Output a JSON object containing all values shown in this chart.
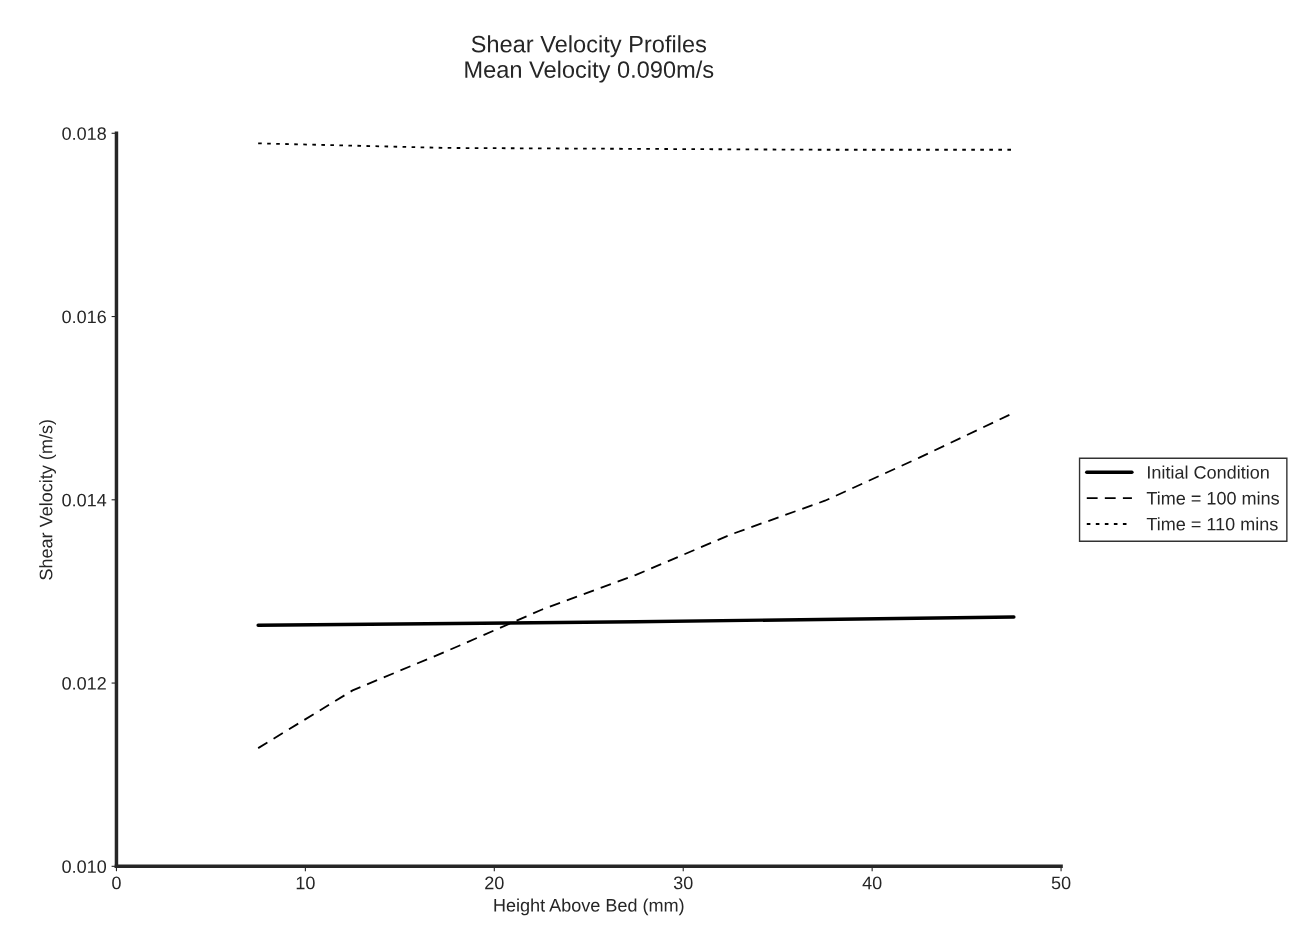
{
  "chart_data": {
    "type": "line",
    "title": "Shear Velocity Profiles\nMean Velocity 0.090m/s",
    "xlabel": "Height Above Bed (mm)",
    "ylabel": "Shear Velocity (m/s)",
    "xlim": [
      0,
      50
    ],
    "xticks": [
      0,
      10,
      20,
      30,
      40,
      50
    ],
    "ylim": [
      0.01,
      0.018
    ],
    "yticks": [
      {
        "value": 0.01,
        "label": "0.010"
      },
      {
        "value": 0.012,
        "label": "0.012"
      },
      {
        "value": 0.014,
        "label": "0.014"
      },
      {
        "value": 0.016,
        "label": "0.016"
      },
      {
        "value": 0.018,
        "label": "0.018"
      }
    ],
    "grid": false,
    "legend": "right",
    "marker": "none",
    "series": [
      {
        "name": "Initial Condition",
        "color": "#000000",
        "line_style": "solid",
        "x": [
          7.5,
          27.5,
          47.5
        ],
        "values": [
          0.01263,
          0.01267,
          0.01272
        ]
      },
      {
        "name": "Time = 100 mins",
        "color": "#000000",
        "line_style": "dashed",
        "x": [
          7.5,
          12.5,
          17.5,
          22.5,
          27.5,
          32.5,
          37.5,
          42.5,
          47.5
        ],
        "values": [
          0.01129,
          0.01192,
          0.01235,
          0.0128,
          0.01318,
          0.01362,
          0.01399,
          0.01446,
          0.01495
        ]
      },
      {
        "name": "Time = 110 mins",
        "color": "#000000",
        "line_style": "dotted",
        "x": [
          7.5,
          17.5,
          27.5,
          37.5,
          47.5
        ],
        "values": [
          0.01789,
          0.01784,
          0.01783,
          0.01782,
          0.01782
        ]
      }
    ]
  }
}
